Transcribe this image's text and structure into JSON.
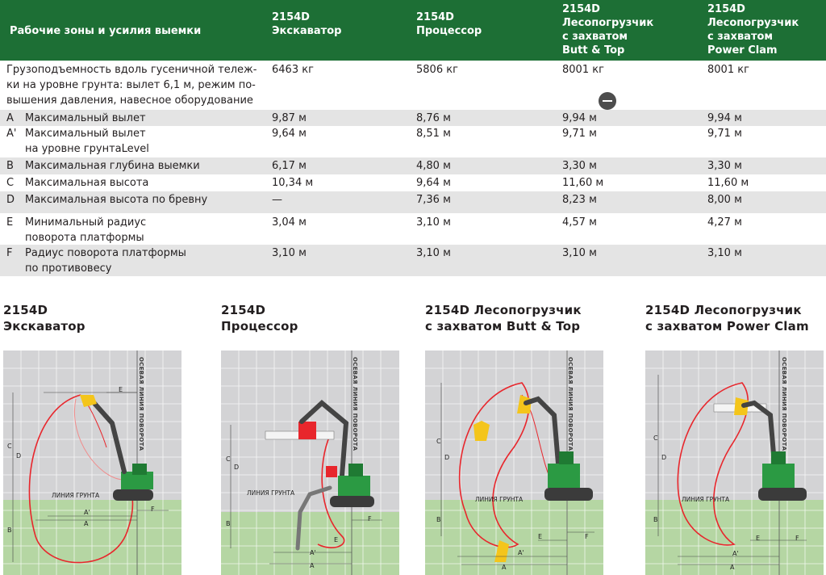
{
  "table": {
    "header": {
      "title": "Рабочие зоны и усилия выемки",
      "columns": [
        [
          "2154D",
          "Экскаватор"
        ],
        [
          "2154D",
          "Процессор"
        ],
        [
          "2154D",
          "Лесопогрузчик",
          "с захватом",
          "Butt & Top"
        ],
        [
          "2154D",
          "Лесопогрузчик",
          "с захватом",
          "Power Clam"
        ]
      ]
    },
    "rows": [
      {
        "letter": "",
        "label_lines": [
          "Грузоподъемность вдоль гусеничной тележ-",
          "ки на уровне грунта: вылет 6,1 м, режим по-",
          "вышения давления, навесное оборудование"
        ],
        "values": [
          "6463 кг",
          "5806 кг",
          "8001 кг",
          "8001 кг"
        ]
      },
      {
        "letter": "A",
        "label_lines": [
          "Максимальный вылет"
        ],
        "values": [
          "9,87 м",
          "8,76 м",
          "9,94 м",
          "9,94 м"
        ]
      },
      {
        "letter": "A'",
        "label_lines": [
          "Максимальный вылет",
          "на уровне грунтаLevel"
        ],
        "values": [
          "9,64 м",
          "8,51 м",
          "9,71 м",
          "9,71 м"
        ]
      },
      {
        "letter": "B",
        "label_lines": [
          "Максимальная глубина выемки"
        ],
        "values": [
          "6,17 м",
          "4,80 м",
          "3,30 м",
          "3,30 м"
        ]
      },
      {
        "letter": "C",
        "label_lines": [
          "Максимальная высота"
        ],
        "values": [
          "10,34 м",
          "9,64 м",
          "11,60 м",
          "11,60 м"
        ]
      },
      {
        "letter": "D",
        "label_lines": [
          "Максимальная высота по бревну"
        ],
        "values": [
          "—",
          "7,36 м",
          "8,23 м",
          "8,00 м"
        ]
      },
      {
        "letter": "E",
        "label_lines": [
          "Минимальный радиус",
          "поворота платформы"
        ],
        "values": [
          "3,04 м",
          "3,10 м",
          "4,57 м",
          "4,27 м"
        ]
      },
      {
        "letter": "F",
        "label_lines": [
          "Радиус поворота платформы",
          "по противовесу"
        ],
        "values": [
          "3,10 м",
          "3,10 м",
          "3,10 м",
          "3,10 м"
        ]
      }
    ]
  },
  "diagrams": [
    {
      "caption": [
        "2154D",
        "Экскаватор"
      ],
      "axis_label": "ОСЕВАЯ ЛИНИЯ ПОВОРОТА",
      "ground_label": "ЛИНИЯ ГРУНТА",
      "dims": [
        "A",
        "A'",
        "B",
        "C",
        "D",
        "E",
        "F"
      ]
    },
    {
      "caption": [
        "2154D",
        "Процессор"
      ],
      "axis_label": "ОСЕВАЯ ЛИНИЯ ПОВОРОТА",
      "ground_label": "ЛИНИЯ ГРУНТА",
      "dims": [
        "A",
        "A'",
        "B",
        "C",
        "D",
        "E",
        "F"
      ]
    },
    {
      "caption": [
        "2154D Лесопогрузчик",
        "с захватом Butt & Top"
      ],
      "axis_label": "ОСЕВАЯ ЛИНИЯ ПОВОРОТА",
      "ground_label": "ЛИНИЯ ГРУНТА",
      "dims": [
        "A",
        "A'",
        "B",
        "C",
        "D",
        "E",
        "F"
      ]
    },
    {
      "caption": [
        "2154D Лесопогрузчик",
        "с захватом Power Clam"
      ],
      "axis_label": "ОСЕВАЯ ЛИНИЯ ПОВОРОТА",
      "ground_label": "ЛИНИЯ ГРУНТА",
      "dims": [
        "A",
        "A'",
        "B",
        "C",
        "D",
        "E",
        "F"
      ]
    }
  ],
  "colors": {
    "header_green": "#1d6f35",
    "row_shade": "#e4e4e4",
    "panel_sky": "#d3d3d5",
    "panel_ground": "#b5d6a3",
    "reach_curve": "#e8262c",
    "machine_green": "#2b9a43",
    "attachment_yellow": "#f4c51b"
  }
}
